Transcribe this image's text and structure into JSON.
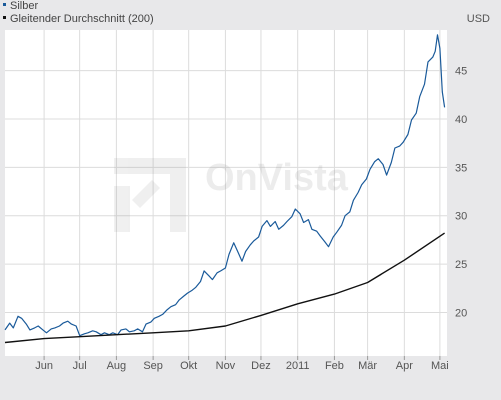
{
  "chart_data": {
    "type": "line",
    "currency": "USD",
    "watermark": "OnVista",
    "y_ticks": [
      20,
      25,
      30,
      35,
      40,
      45
    ],
    "ylim": [
      15.5,
      49.2
    ],
    "x_labels": [
      "Jun",
      "Jul",
      "Aug",
      "Sep",
      "Okt",
      "Nov",
      "Dez",
      "2011",
      "Feb",
      "Mär",
      "Apr",
      "Mai"
    ],
    "x_label_dates": [
      "2010-06-01",
      "2010-07-01",
      "2010-08-01",
      "2010-09-01",
      "2010-10-01",
      "2010-11-01",
      "2010-12-01",
      "2011-01-01",
      "2011-02-01",
      "2011-03-01",
      "2011-04-01",
      "2011-05-01"
    ],
    "xlim": [
      "2010-04-29",
      "2011-05-07"
    ],
    "grid": true,
    "legend_position": "top-left",
    "series": [
      {
        "name": "Silber",
        "color": "#1a5a9a",
        "points": [
          [
            "2010-04-29",
            18.2
          ],
          [
            "2010-05-03",
            18.9
          ],
          [
            "2010-05-06",
            18.4
          ],
          [
            "2010-05-10",
            19.6
          ],
          [
            "2010-05-13",
            19.4
          ],
          [
            "2010-05-17",
            18.8
          ],
          [
            "2010-05-20",
            18.2
          ],
          [
            "2010-05-24",
            18.4
          ],
          [
            "2010-05-27",
            18.6
          ],
          [
            "2010-05-31",
            18.2
          ],
          [
            "2010-06-03",
            17.9
          ],
          [
            "2010-06-07",
            18.3
          ],
          [
            "2010-06-10",
            18.4
          ],
          [
            "2010-06-14",
            18.6
          ],
          [
            "2010-06-17",
            18.9
          ],
          [
            "2010-06-21",
            19.1
          ],
          [
            "2010-06-24",
            18.8
          ],
          [
            "2010-06-28",
            18.6
          ],
          [
            "2010-07-01",
            17.6
          ],
          [
            "2010-07-05",
            17.8
          ],
          [
            "2010-07-08",
            17.9
          ],
          [
            "2010-07-12",
            18.1
          ],
          [
            "2010-07-15",
            18.0
          ],
          [
            "2010-07-19",
            17.7
          ],
          [
            "2010-07-22",
            17.9
          ],
          [
            "2010-07-26",
            17.7
          ],
          [
            "2010-07-29",
            17.9
          ],
          [
            "2010-08-02",
            17.7
          ],
          [
            "2010-08-05",
            18.2
          ],
          [
            "2010-08-09",
            18.3
          ],
          [
            "2010-08-12",
            18.0
          ],
          [
            "2010-08-16",
            18.1
          ],
          [
            "2010-08-19",
            18.3
          ],
          [
            "2010-08-23",
            18.0
          ],
          [
            "2010-08-26",
            18.8
          ],
          [
            "2010-08-30",
            19.0
          ],
          [
            "2010-09-02",
            19.4
          ],
          [
            "2010-09-06",
            19.6
          ],
          [
            "2010-09-09",
            19.8
          ],
          [
            "2010-09-13",
            20.3
          ],
          [
            "2010-09-16",
            20.6
          ],
          [
            "2010-09-20",
            20.8
          ],
          [
            "2010-09-23",
            21.3
          ],
          [
            "2010-09-27",
            21.7
          ],
          [
            "2010-09-30",
            22.0
          ],
          [
            "2010-10-04",
            22.3
          ],
          [
            "2010-10-07",
            22.6
          ],
          [
            "2010-10-11",
            23.2
          ],
          [
            "2010-10-14",
            24.3
          ],
          [
            "2010-10-18",
            23.8
          ],
          [
            "2010-10-21",
            23.4
          ],
          [
            "2010-10-25",
            24.1
          ],
          [
            "2010-10-28",
            24.3
          ],
          [
            "2010-11-01",
            24.6
          ],
          [
            "2010-11-04",
            26.0
          ],
          [
            "2010-11-08",
            27.2
          ],
          [
            "2010-11-11",
            26.4
          ],
          [
            "2010-11-15",
            25.3
          ],
          [
            "2010-11-18",
            26.3
          ],
          [
            "2010-11-22",
            27.0
          ],
          [
            "2010-11-25",
            27.4
          ],
          [
            "2010-11-29",
            27.8
          ],
          [
            "2010-12-02",
            28.9
          ],
          [
            "2010-12-06",
            29.5
          ],
          [
            "2010-12-09",
            28.9
          ],
          [
            "2010-12-13",
            29.4
          ],
          [
            "2010-12-16",
            28.6
          ],
          [
            "2010-12-20",
            29.0
          ],
          [
            "2010-12-23",
            29.4
          ],
          [
            "2010-12-27",
            29.9
          ],
          [
            "2010-12-30",
            30.7
          ],
          [
            "2011-01-03",
            30.2
          ],
          [
            "2011-01-06",
            29.3
          ],
          [
            "2011-01-10",
            29.6
          ],
          [
            "2011-01-13",
            28.6
          ],
          [
            "2011-01-17",
            28.4
          ],
          [
            "2011-01-20",
            27.9
          ],
          [
            "2011-01-24",
            27.3
          ],
          [
            "2011-01-27",
            26.8
          ],
          [
            "2011-01-31",
            27.8
          ],
          [
            "2011-02-03",
            28.3
          ],
          [
            "2011-02-07",
            29.0
          ],
          [
            "2011-02-10",
            30.0
          ],
          [
            "2011-02-14",
            30.4
          ],
          [
            "2011-02-17",
            31.6
          ],
          [
            "2011-02-21",
            32.4
          ],
          [
            "2011-02-24",
            33.2
          ],
          [
            "2011-02-28",
            33.8
          ],
          [
            "2011-03-03",
            34.8
          ],
          [
            "2011-03-07",
            35.6
          ],
          [
            "2011-03-10",
            35.9
          ],
          [
            "2011-03-14",
            35.3
          ],
          [
            "2011-03-17",
            34.2
          ],
          [
            "2011-03-21",
            35.5
          ],
          [
            "2011-03-24",
            37.0
          ],
          [
            "2011-03-28",
            37.2
          ],
          [
            "2011-03-31",
            37.6
          ],
          [
            "2011-04-04",
            38.4
          ],
          [
            "2011-04-07",
            39.9
          ],
          [
            "2011-04-11",
            40.6
          ],
          [
            "2011-04-14",
            42.3
          ],
          [
            "2011-04-18",
            43.6
          ],
          [
            "2011-04-21",
            45.9
          ],
          [
            "2011-04-25",
            46.4
          ],
          [
            "2011-04-27",
            47.0
          ],
          [
            "2011-04-29",
            48.7
          ],
          [
            "2011-05-01",
            47.3
          ],
          [
            "2011-05-03",
            42.8
          ],
          [
            "2011-05-05",
            41.2
          ]
        ]
      },
      {
        "name": "Gleitender Durchschnitt (200)",
        "color": "#111111",
        "points": [
          [
            "2010-04-29",
            16.9
          ],
          [
            "2010-06-01",
            17.3
          ],
          [
            "2010-07-01",
            17.5
          ],
          [
            "2010-08-01",
            17.7
          ],
          [
            "2010-09-01",
            17.9
          ],
          [
            "2010-10-01",
            18.1
          ],
          [
            "2010-11-01",
            18.6
          ],
          [
            "2010-12-01",
            19.7
          ],
          [
            "2011-01-01",
            20.9
          ],
          [
            "2011-02-01",
            21.9
          ],
          [
            "2011-03-01",
            23.1
          ],
          [
            "2011-04-01",
            25.4
          ],
          [
            "2011-05-05",
            28.2
          ]
        ]
      }
    ]
  }
}
